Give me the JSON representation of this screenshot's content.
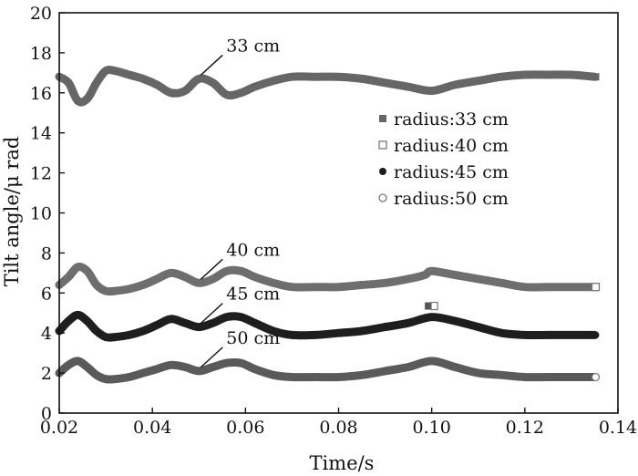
{
  "chart_data": {
    "type": "line",
    "title": "",
    "xlabel": "Time/s",
    "ylabel": "Tilt angle/μ rad",
    "xlim": [
      0.02,
      0.14
    ],
    "ylim": [
      0,
      20
    ],
    "xticks": [
      "0.02",
      "0.04",
      "0.06",
      "0.08",
      "0.10",
      "0.12",
      "0.14"
    ],
    "yticks": [
      "0",
      "2",
      "4",
      "6",
      "8",
      "10",
      "12",
      "14",
      "16",
      "18",
      "20"
    ],
    "grid": false,
    "legend_position": "right",
    "series": [
      {
        "name": "radius:33 cm",
        "annotation": "33 cm",
        "marker": "filled-square",
        "color": "#666666",
        "x": [
          0.02,
          0.022,
          0.024,
          0.026,
          0.028,
          0.03,
          0.032,
          0.035,
          0.038,
          0.041,
          0.044,
          0.047,
          0.05,
          0.053,
          0.056,
          0.059,
          0.062,
          0.066,
          0.07,
          0.075,
          0.08,
          0.085,
          0.09,
          0.095,
          0.1,
          0.105,
          0.11,
          0.115,
          0.12,
          0.125,
          0.13,
          0.135
        ],
        "y": [
          16.8,
          16.5,
          15.6,
          15.7,
          16.5,
          17.1,
          17.1,
          16.9,
          16.7,
          16.4,
          16.0,
          16.1,
          16.7,
          16.5,
          15.9,
          16.0,
          16.3,
          16.6,
          16.8,
          16.8,
          16.8,
          16.7,
          16.5,
          16.3,
          16.1,
          16.4,
          16.6,
          16.8,
          16.9,
          16.9,
          16.9,
          16.8
        ]
      },
      {
        "name": "radius:40 cm",
        "annotation": "40 cm",
        "marker": "open-square",
        "color": "#6e6e6e",
        "x": [
          0.02,
          0.022,
          0.024,
          0.026,
          0.028,
          0.03,
          0.032,
          0.035,
          0.038,
          0.041,
          0.044,
          0.047,
          0.05,
          0.053,
          0.056,
          0.059,
          0.062,
          0.066,
          0.07,
          0.075,
          0.08,
          0.085,
          0.09,
          0.095,
          0.0985,
          0.1,
          0.105,
          0.11,
          0.115,
          0.12,
          0.125,
          0.13,
          0.135
        ],
        "y": [
          6.4,
          6.8,
          7.3,
          7.1,
          6.4,
          6.1,
          6.1,
          6.2,
          6.4,
          6.7,
          7.0,
          6.8,
          6.5,
          6.7,
          7.1,
          7.1,
          6.8,
          6.5,
          6.3,
          6.3,
          6.3,
          6.4,
          6.5,
          6.7,
          6.9,
          7.1,
          6.9,
          6.7,
          6.5,
          6.3,
          6.3,
          6.3,
          6.3
        ]
      },
      {
        "name": "radius:45 cm",
        "annotation": "45 cm",
        "marker": "filled-circle",
        "color": "#1e1e1e",
        "x": [
          0.02,
          0.022,
          0.024,
          0.026,
          0.028,
          0.03,
          0.032,
          0.035,
          0.038,
          0.041,
          0.044,
          0.047,
          0.05,
          0.053,
          0.056,
          0.059,
          0.062,
          0.066,
          0.07,
          0.075,
          0.08,
          0.085,
          0.09,
          0.095,
          0.1,
          0.105,
          0.11,
          0.115,
          0.12,
          0.125,
          0.13,
          0.135
        ],
        "y": [
          4.1,
          4.6,
          4.9,
          4.6,
          4.1,
          3.8,
          3.8,
          3.9,
          4.1,
          4.4,
          4.7,
          4.5,
          4.3,
          4.5,
          4.8,
          4.8,
          4.5,
          4.1,
          3.9,
          3.9,
          4.0,
          4.1,
          4.3,
          4.5,
          4.8,
          4.6,
          4.3,
          4.0,
          3.9,
          3.9,
          3.9,
          3.9
        ]
      },
      {
        "name": "radius:50 cm",
        "annotation": "50 cm",
        "marker": "open-circle",
        "color": "#5a5a5a",
        "x": [
          0.02,
          0.022,
          0.024,
          0.026,
          0.028,
          0.03,
          0.032,
          0.035,
          0.038,
          0.041,
          0.044,
          0.047,
          0.05,
          0.053,
          0.056,
          0.059,
          0.062,
          0.066,
          0.07,
          0.075,
          0.08,
          0.085,
          0.09,
          0.095,
          0.1,
          0.105,
          0.11,
          0.115,
          0.12,
          0.125,
          0.13,
          0.135
        ],
        "y": [
          2.0,
          2.4,
          2.6,
          2.3,
          1.9,
          1.7,
          1.7,
          1.8,
          2.0,
          2.2,
          2.4,
          2.3,
          2.1,
          2.3,
          2.5,
          2.5,
          2.2,
          1.9,
          1.8,
          1.8,
          1.8,
          1.9,
          2.1,
          2.3,
          2.6,
          2.3,
          2.0,
          1.9,
          1.8,
          1.8,
          1.8,
          1.8
        ]
      }
    ]
  }
}
